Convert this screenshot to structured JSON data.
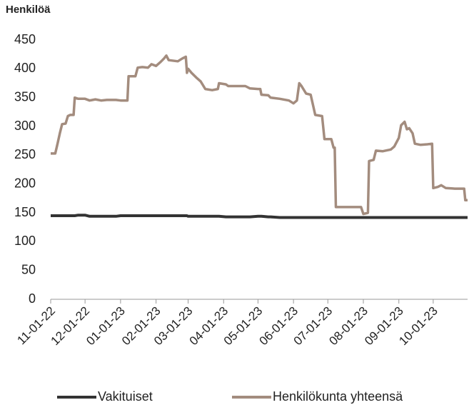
{
  "chart_data": {
    "type": "line",
    "ylabel": "Henkilöä",
    "x": [
      "11-01-22",
      "11-05-22",
      "11-07-22",
      "11-09-22",
      "11-11-22",
      "11-14-22",
      "11-16-22",
      "11-18-22",
      "11-21-22",
      "11-22-22",
      "11-25-22",
      "12-01-22",
      "12-05-22",
      "12-10-22",
      "12-15-22",
      "12-20-22",
      "12-28-22",
      "01-01-23",
      "01-07-23",
      "01-08-23",
      "01-14-23",
      "01-16-23",
      "01-20-23",
      "01-25-23",
      "01-28-23",
      "02-01-23",
      "02-05-23",
      "02-08-23",
      "02-10-23",
      "02-12-23",
      "02-20-23",
      "02-24-23",
      "02-27-23",
      "02-28-23",
      "03-01-23",
      "03-04-23",
      "03-08-23",
      "03-12-23",
      "03-16-23",
      "03-22-23",
      "03-27-23",
      "03-28-23",
      "04-03-23",
      "04-05-23",
      "04-20-23",
      "04-24-23",
      "05-01-23",
      "05-03-23",
      "05-04-23",
      "05-10-23",
      "05-12-23",
      "05-20-23",
      "05-28-23",
      "06-01-23",
      "06-04-23",
      "06-06-23",
      "06-08-23",
      "06-12-23",
      "06-16-23",
      "06-20-23",
      "06-26-23",
      "06-28-23",
      "07-04-23",
      "07-06-23",
      "07-07-23",
      "07-08-23",
      "07-30-23",
      "08-01-23",
      "08-05-23",
      "08-06-23",
      "08-10-23",
      "08-12-23",
      "08-18-23",
      "08-25-23",
      "08-28-23",
      "09-01-23",
      "09-03-23",
      "09-06-23",
      "09-08-23",
      "09-10-23",
      "09-13-23",
      "09-15-23",
      "09-20-23",
      "09-26-23",
      "09-30-23",
      "10-01-23",
      "10-05-23",
      "10-08-23",
      "10-12-23",
      "10-20-23",
      "10-28-23",
      "10-29-23",
      "10-31-23"
    ],
    "series": [
      {
        "name": "Vakituiset",
        "color": "#333333",
        "values": [
          145,
          145,
          145,
          145,
          145,
          145,
          145,
          145,
          145,
          145,
          146,
          146,
          144,
          144,
          144,
          144,
          144,
          145,
          145,
          145,
          145,
          145,
          145,
          145,
          145,
          145,
          145,
          145,
          145,
          145,
          145,
          145,
          145,
          145,
          144,
          144,
          144,
          144,
          144,
          144,
          144,
          144,
          143,
          143,
          143,
          143,
          144,
          144,
          144,
          143,
          143,
          142,
          142,
          142,
          142,
          142,
          142,
          142,
          142,
          142,
          142,
          142,
          142,
          142,
          142,
          142,
          142,
          142,
          142,
          142,
          142,
          142,
          142,
          142,
          142,
          142,
          142,
          142,
          142,
          142,
          142,
          142,
          142,
          142,
          142,
          142,
          142,
          142,
          142,
          142,
          142,
          142,
          142
        ]
      },
      {
        "name": "Henkilökunta yhteensä",
        "color": "#a38c7e",
        "values": [
          253,
          253,
          270,
          288,
          304,
          305,
          318,
          320,
          320,
          350,
          348,
          348,
          345,
          347,
          345,
          346,
          346,
          345,
          345,
          387,
          387,
          402,
          403,
          402,
          408,
          405,
          412,
          418,
          423,
          415,
          413,
          418,
          421,
          393,
          400,
          393,
          385,
          378,
          365,
          363,
          365,
          375,
          373,
          370,
          370,
          366,
          365,
          365,
          355,
          354,
          350,
          348,
          345,
          340,
          345,
          375,
          370,
          357,
          355,
          320,
          318,
          278,
          278,
          263,
          263,
          160,
          160,
          148,
          150,
          240,
          242,
          258,
          257,
          260,
          265,
          280,
          302,
          308,
          295,
          297,
          288,
          270,
          268,
          269,
          270,
          193,
          195,
          198,
          193,
          192,
          192,
          172,
          172
        ]
      }
    ],
    "xlim": [
      "11-01-22",
      "10-31-23"
    ],
    "xticks": [
      "11-01-22",
      "12-01-22",
      "01-01-23",
      "02-01-23",
      "03-01-23",
      "04-01-23",
      "05-01-23",
      "06-01-23",
      "07-01-23",
      "08-01-23",
      "09-01-23",
      "10-01-23"
    ],
    "ylim": [
      0,
      450
    ],
    "yticks": [
      0,
      50,
      100,
      150,
      200,
      250,
      300,
      350,
      400,
      450
    ],
    "grid": false,
    "legend": "bottom"
  }
}
